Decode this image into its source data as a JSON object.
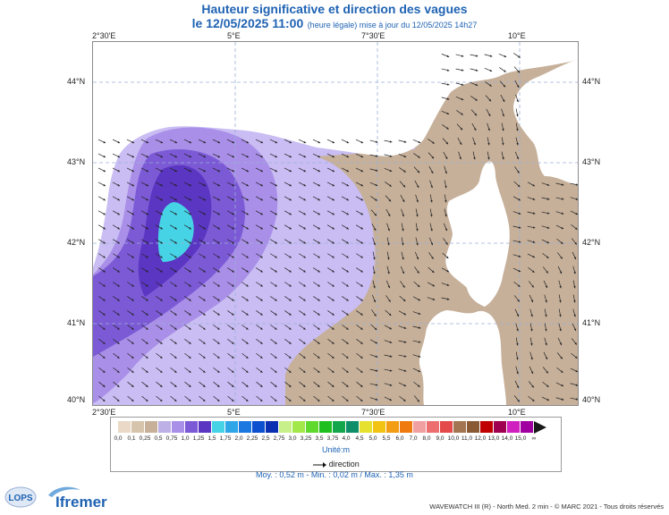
{
  "header": {
    "title": "Hauteur significative et direction des vagues",
    "date_main": "le 12/05/2025 11:00",
    "date_note": "(heure légale) mise à jour du 12/05/2025 14h27"
  },
  "axes": {
    "longitude_labels": [
      "2°30'E",
      "5°E",
      "7°30'E",
      "10°E"
    ],
    "latitude_labels": [
      "44°N",
      "43°N",
      "42°N",
      "41°N",
      "40°N"
    ]
  },
  "legend": {
    "tick_labels": [
      "0,0",
      "0,1",
      "0,25",
      "0,5",
      "0,75",
      "1,0",
      "1,25",
      "1,5",
      "1,75",
      "2,0",
      "2,25",
      "2,5",
      "2,75",
      "3,0",
      "3,25",
      "3,5",
      "3,75",
      "4,0",
      "4,5",
      "5,0",
      "5,5",
      "6,0",
      "7,0",
      "8,0",
      "9,0",
      "10,0",
      "11,0",
      "12,0",
      "13,0",
      "14,0",
      "15,0",
      "∞"
    ],
    "colors": [
      "#e9d9c6",
      "#d7c4ac",
      "#c6b09a",
      "#bdb0e6",
      "#a98fe8",
      "#7c5ad6",
      "#5b36c2",
      "#46d3e6",
      "#2ea6e8",
      "#1a78e0",
      "#0c4fcf",
      "#0a2fb0",
      "#c8f08a",
      "#a3e84a",
      "#5fd92e",
      "#1fbf1f",
      "#14a64a",
      "#0e8f6a",
      "#e6e02e",
      "#f2c313",
      "#f29d13",
      "#ee7a10",
      "#f0a0a0",
      "#ec6e6e",
      "#e44a4a",
      "#a37550",
      "#8a5a34",
      "#c00000",
      "#a00050",
      "#d020c0",
      "#a000a0"
    ],
    "unit": "Unité:m",
    "direction_label": "direction"
  },
  "stats": {
    "text": "Moy. : 0,52 m   -   Min. : 0,02 m / Max. : 1,35 m"
  },
  "footer": {
    "copyright": "WAVEWATCH III (R) - North Med. 2 min - © MARC 2021 - Tous droits réservés",
    "logo_left": "LOPS",
    "logo_right": "Ifremer"
  }
}
